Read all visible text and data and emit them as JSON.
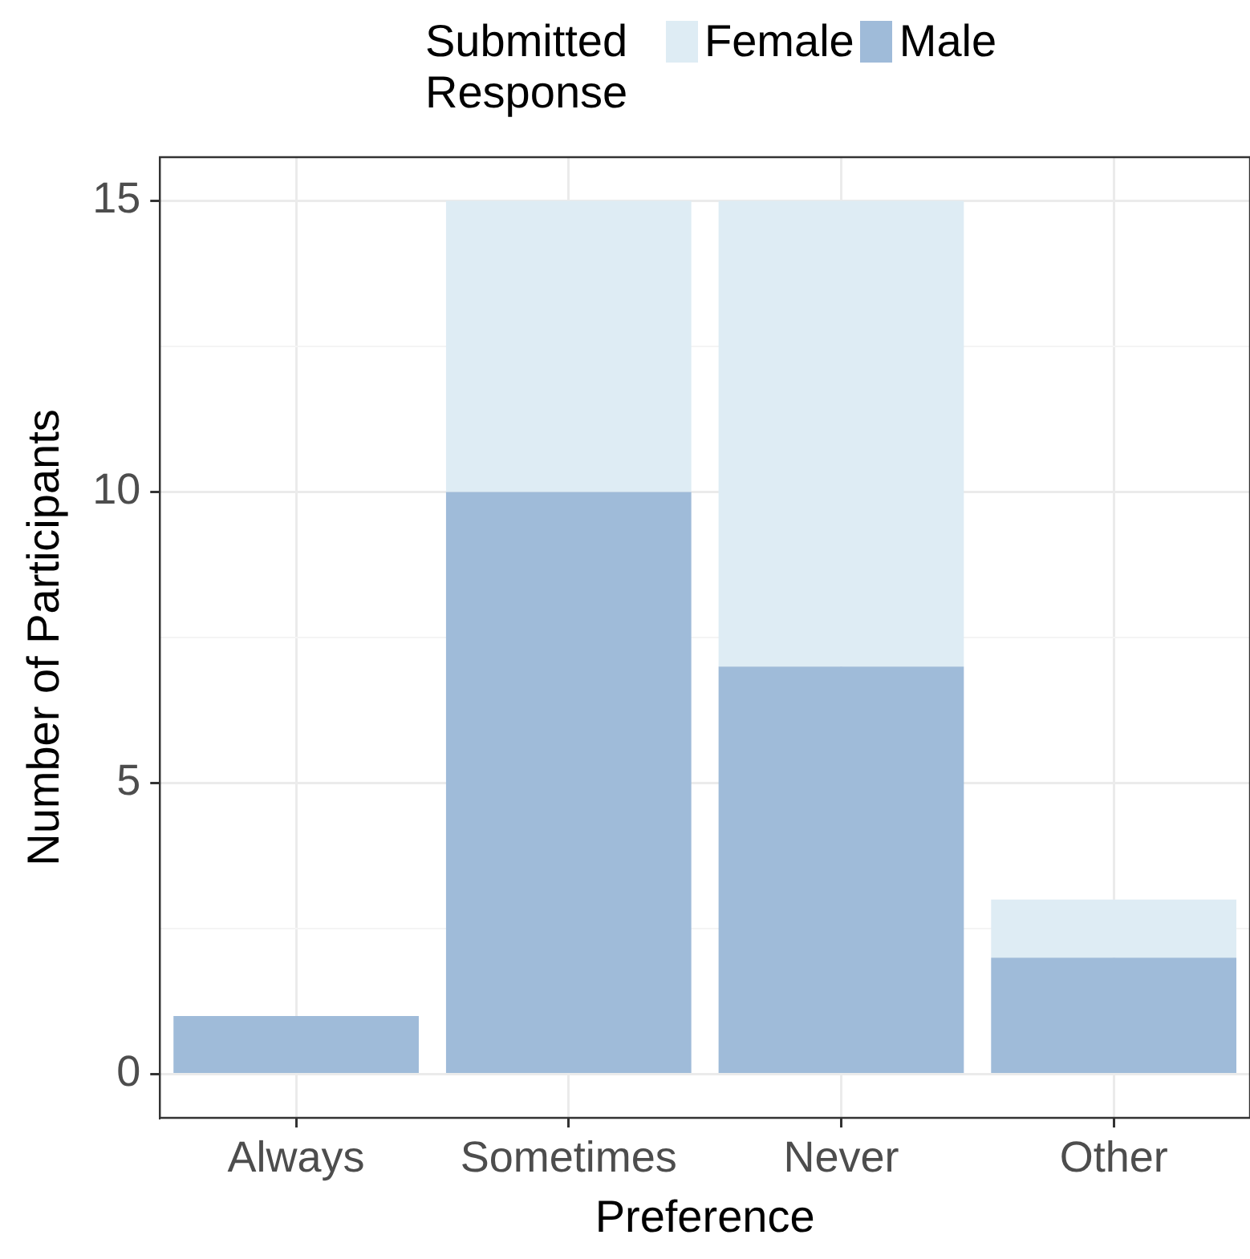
{
  "chart_data": {
    "type": "bar",
    "stacked": true,
    "xlabel": "Preference",
    "ylabel": "Number of Participants",
    "legend_title": "Submitted Response",
    "categories": [
      "Always",
      "Sometimes",
      "Never",
      "Other"
    ],
    "series": [
      {
        "name": "Male",
        "color": "#9fbbd9",
        "values": [
          1,
          10,
          7,
          2
        ]
      },
      {
        "name": "Female",
        "color": "#deecf4",
        "values": [
          0,
          5,
          8,
          1
        ]
      }
    ],
    "ylim": [
      -0.75,
      15.75
    ],
    "yticks": [
      0,
      {
        "value": 2.5,
        "label": null
      },
      5,
      {
        "value": 7.5,
        "label": null
      },
      10,
      {
        "value": 12.5,
        "label": null
      },
      15
    ],
    "grid": true,
    "legend": "top"
  }
}
